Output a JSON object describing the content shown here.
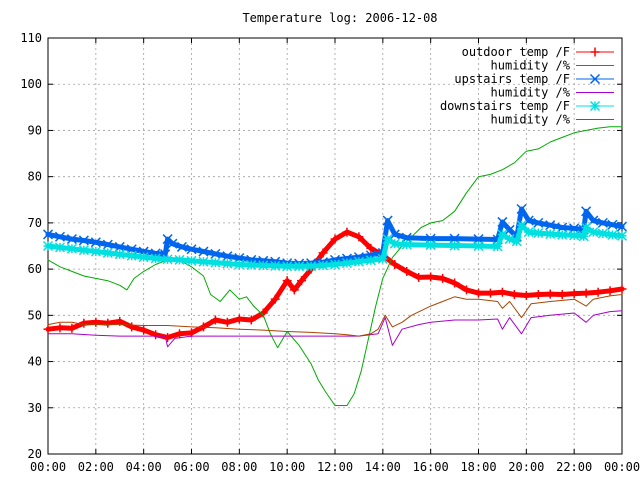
{
  "chart_data": {
    "type": "line",
    "title": "Temperature log: 2006-12-08",
    "xlabel": "",
    "ylabel": "",
    "x_ticks": [
      "00:00",
      "02:00",
      "04:00",
      "06:00",
      "08:00",
      "10:00",
      "12:00",
      "14:00",
      "16:00",
      "18:00",
      "20:00",
      "22:00",
      "00:00"
    ],
    "y_ticks": [
      20,
      30,
      40,
      50,
      60,
      70,
      80,
      90,
      100,
      110
    ],
    "xlim": [
      0,
      24
    ],
    "ylim": [
      20,
      110
    ],
    "grid": true,
    "legend_position": "top-right",
    "series": [
      {
        "name": "outdoor temp /F",
        "color": "#ff0000",
        "marker": "plus",
        "points": [
          [
            0,
            47.0
          ],
          [
            0.5,
            47.3
          ],
          [
            1.0,
            47.2
          ],
          [
            1.5,
            48.3
          ],
          [
            2.0,
            48.5
          ],
          [
            2.5,
            48.3
          ],
          [
            3.0,
            48.7
          ],
          [
            3.5,
            47.5
          ],
          [
            4.0,
            46.8
          ],
          [
            4.5,
            45.8
          ],
          [
            5.0,
            45.2
          ],
          [
            5.5,
            46.0
          ],
          [
            6.0,
            46.2
          ],
          [
            6.5,
            47.5
          ],
          [
            7.0,
            49.0
          ],
          [
            7.5,
            48.5
          ],
          [
            8.0,
            49.2
          ],
          [
            8.5,
            49.0
          ],
          [
            9.0,
            50.5
          ],
          [
            9.5,
            53.5
          ],
          [
            10.0,
            57.5
          ],
          [
            10.3,
            55.5
          ],
          [
            10.6,
            57.5
          ],
          [
            11.0,
            60.0
          ],
          [
            11.5,
            63.5
          ],
          [
            12.0,
            66.5
          ],
          [
            12.5,
            68.0
          ],
          [
            13.0,
            67.0
          ],
          [
            13.5,
            64.5
          ],
          [
            14.0,
            63.0
          ],
          [
            14.5,
            61.0
          ],
          [
            15.0,
            59.5
          ],
          [
            15.5,
            58.2
          ],
          [
            16.0,
            58.3
          ],
          [
            16.5,
            58.0
          ],
          [
            17.0,
            57.0
          ],
          [
            17.5,
            55.5
          ],
          [
            18.0,
            54.8
          ],
          [
            18.5,
            54.8
          ],
          [
            19.0,
            55.0
          ],
          [
            19.5,
            54.5
          ],
          [
            20.0,
            54.3
          ],
          [
            20.5,
            54.5
          ],
          [
            21.0,
            54.6
          ],
          [
            21.5,
            54.5
          ],
          [
            22.0,
            54.7
          ],
          [
            22.5,
            54.8
          ],
          [
            23.0,
            55.0
          ],
          [
            23.5,
            55.3
          ],
          [
            24.0,
            55.7
          ]
        ]
      },
      {
        "name": "humidity /%",
        "color": "#00aa00",
        "marker": "none",
        "points": [
          [
            0,
            62.0
          ],
          [
            0.5,
            60.5
          ],
          [
            1.0,
            59.5
          ],
          [
            1.5,
            58.5
          ],
          [
            2.0,
            58.0
          ],
          [
            2.5,
            57.5
          ],
          [
            3.0,
            56.5
          ],
          [
            3.3,
            55.5
          ],
          [
            3.6,
            58.0
          ],
          [
            4.0,
            59.5
          ],
          [
            4.5,
            61.0
          ],
          [
            5.0,
            62.0
          ],
          [
            5.5,
            62.0
          ],
          [
            6.0,
            60.5
          ],
          [
            6.5,
            58.5
          ],
          [
            6.8,
            54.5
          ],
          [
            7.2,
            53.0
          ],
          [
            7.6,
            55.5
          ],
          [
            8.0,
            53.5
          ],
          [
            8.3,
            54.0
          ],
          [
            8.6,
            52.0
          ],
          [
            9.0,
            50.0
          ],
          [
            9.3,
            46.0
          ],
          [
            9.6,
            43.0
          ],
          [
            10.0,
            46.5
          ],
          [
            10.5,
            43.5
          ],
          [
            11.0,
            39.5
          ],
          [
            11.3,
            36.0
          ],
          [
            11.6,
            33.5
          ],
          [
            12.0,
            30.5
          ],
          [
            12.5,
            30.5
          ],
          [
            12.8,
            33.0
          ],
          [
            13.1,
            38.0
          ],
          [
            13.4,
            45.0
          ],
          [
            13.7,
            52.0
          ],
          [
            14.0,
            58.0
          ],
          [
            14.4,
            62.5
          ],
          [
            14.8,
            65.0
          ],
          [
            15.2,
            67.0
          ],
          [
            15.6,
            69.0
          ],
          [
            16.0,
            70.0
          ],
          [
            16.5,
            70.5
          ],
          [
            17.0,
            72.5
          ],
          [
            17.5,
            76.5
          ],
          [
            18.0,
            80.0
          ],
          [
            18.5,
            80.5
          ],
          [
            19.0,
            81.5
          ],
          [
            19.5,
            83.0
          ],
          [
            20.0,
            85.5
          ],
          [
            20.5,
            86.0
          ],
          [
            21.0,
            87.5
          ],
          [
            21.5,
            88.5
          ],
          [
            22.0,
            89.5
          ],
          [
            22.5,
            90.0
          ],
          [
            23.0,
            90.5
          ],
          [
            23.5,
            90.8
          ],
          [
            24.0,
            90.8
          ]
        ]
      },
      {
        "name": "upstairs temp /F",
        "color": "#0066ee",
        "marker": "x",
        "points": [
          [
            0,
            67.5
          ],
          [
            0.5,
            67.0
          ],
          [
            1.0,
            66.5
          ],
          [
            1.5,
            66.2
          ],
          [
            2.0,
            65.8
          ],
          [
            2.5,
            65.3
          ],
          [
            3.0,
            64.8
          ],
          [
            3.5,
            64.3
          ],
          [
            4.0,
            63.8
          ],
          [
            4.5,
            63.4
          ],
          [
            4.9,
            63.2
          ],
          [
            5.0,
            66.5
          ],
          [
            5.2,
            65.5
          ],
          [
            5.6,
            64.8
          ],
          [
            6.0,
            64.3
          ],
          [
            6.5,
            63.8
          ],
          [
            7.0,
            63.3
          ],
          [
            7.5,
            62.8
          ],
          [
            8.0,
            62.4
          ],
          [
            8.5,
            62.0
          ],
          [
            9.0,
            61.8
          ],
          [
            9.5,
            61.6
          ],
          [
            10.0,
            61.3
          ],
          [
            10.5,
            61.2
          ],
          [
            11.0,
            61.3
          ],
          [
            11.5,
            61.5
          ],
          [
            12.0,
            62.0
          ],
          [
            12.5,
            62.3
          ],
          [
            13.0,
            62.6
          ],
          [
            13.5,
            63.0
          ],
          [
            14.0,
            63.5
          ],
          [
            14.2,
            70.5
          ],
          [
            14.5,
            67.5
          ],
          [
            15.0,
            66.8
          ],
          [
            16.0,
            66.6
          ],
          [
            17.0,
            66.6
          ],
          [
            18.0,
            66.5
          ],
          [
            18.8,
            66.4
          ],
          [
            19.0,
            70.2
          ],
          [
            19.3,
            68.5
          ],
          [
            19.6,
            67.0
          ],
          [
            19.8,
            73.0
          ],
          [
            20.1,
            70.5
          ],
          [
            20.5,
            70.0
          ],
          [
            21.0,
            69.5
          ],
          [
            21.5,
            69.0
          ],
          [
            22.0,
            68.8
          ],
          [
            22.4,
            68.5
          ],
          [
            22.5,
            72.5
          ],
          [
            22.8,
            70.5
          ],
          [
            23.2,
            70.0
          ],
          [
            23.6,
            69.6
          ],
          [
            24.0,
            69.2
          ]
        ]
      },
      {
        "name": "humidity /%",
        "color": "#aa00cc",
        "marker": "none",
        "points": [
          [
            0,
            46.0
          ],
          [
            1.0,
            46.0
          ],
          [
            2.0,
            45.7
          ],
          [
            3.0,
            45.5
          ],
          [
            4.0,
            45.5
          ],
          [
            4.9,
            45.5
          ],
          [
            5.0,
            43.2
          ],
          [
            5.3,
            45.0
          ],
          [
            6.0,
            45.5
          ],
          [
            7.0,
            45.5
          ],
          [
            8.0,
            45.5
          ],
          [
            9.0,
            45.5
          ],
          [
            10.0,
            45.5
          ],
          [
            11.0,
            45.5
          ],
          [
            12.0,
            45.5
          ],
          [
            13.0,
            45.5
          ],
          [
            13.8,
            46.0
          ],
          [
            14.1,
            49.5
          ],
          [
            14.4,
            43.5
          ],
          [
            14.8,
            47.0
          ],
          [
            15.5,
            48.0
          ],
          [
            16.0,
            48.5
          ],
          [
            17.0,
            49.0
          ],
          [
            18.0,
            49.0
          ],
          [
            18.8,
            49.2
          ],
          [
            19.0,
            47.0
          ],
          [
            19.3,
            49.5
          ],
          [
            19.8,
            46.0
          ],
          [
            20.2,
            49.5
          ],
          [
            21.0,
            50.0
          ],
          [
            22.0,
            50.5
          ],
          [
            22.5,
            48.5
          ],
          [
            22.8,
            50.0
          ],
          [
            23.5,
            50.8
          ],
          [
            24.0,
            51.0
          ]
        ]
      },
      {
        "name": "downstairs temp /F",
        "color": "#00e0e0",
        "marker": "star",
        "points": [
          [
            0,
            65.0
          ],
          [
            0.5,
            64.7
          ],
          [
            1.0,
            64.4
          ],
          [
            1.5,
            64.1
          ],
          [
            2.0,
            63.8
          ],
          [
            2.5,
            63.5
          ],
          [
            3.0,
            63.2
          ],
          [
            3.5,
            62.9
          ],
          [
            4.0,
            62.6
          ],
          [
            4.5,
            62.3
          ],
          [
            5.0,
            62.1
          ],
          [
            5.5,
            62.0
          ],
          [
            6.0,
            61.8
          ],
          [
            6.5,
            61.6
          ],
          [
            7.0,
            61.4
          ],
          [
            7.5,
            61.2
          ],
          [
            8.0,
            61.0
          ],
          [
            8.5,
            60.9
          ],
          [
            9.0,
            60.8
          ],
          [
            9.5,
            60.7
          ],
          [
            10.0,
            60.6
          ],
          [
            10.5,
            60.6
          ],
          [
            11.0,
            60.6
          ],
          [
            11.5,
            60.8
          ],
          [
            12.0,
            61.0
          ],
          [
            12.5,
            61.3
          ],
          [
            13.0,
            61.6
          ],
          [
            13.5,
            61.9
          ],
          [
            14.0,
            62.2
          ],
          [
            14.2,
            66.5
          ],
          [
            14.5,
            65.5
          ],
          [
            15.0,
            65.3
          ],
          [
            16.0,
            65.2
          ],
          [
            17.0,
            65.1
          ],
          [
            18.0,
            65.0
          ],
          [
            18.8,
            64.9
          ],
          [
            19.0,
            67.5
          ],
          [
            19.3,
            66.5
          ],
          [
            19.6,
            66.0
          ],
          [
            19.8,
            69.5
          ],
          [
            20.1,
            68.0
          ],
          [
            20.5,
            67.8
          ],
          [
            21.0,
            67.6
          ],
          [
            21.5,
            67.4
          ],
          [
            22.0,
            67.3
          ],
          [
            22.4,
            67.1
          ],
          [
            22.5,
            69.0
          ],
          [
            22.8,
            68.0
          ],
          [
            23.2,
            67.7
          ],
          [
            23.6,
            67.4
          ],
          [
            24.0,
            67.2
          ]
        ]
      },
      {
        "name": "humidity /%",
        "color": "#aa4400",
        "marker": "none",
        "points": [
          [
            0,
            48.0
          ],
          [
            0.5,
            48.5
          ],
          [
            1.0,
            48.5
          ],
          [
            1.5,
            48.0
          ],
          [
            2.0,
            48.0
          ],
          [
            3.0,
            48.0
          ],
          [
            4.0,
            47.8
          ],
          [
            5.0,
            47.8
          ],
          [
            6.0,
            47.5
          ],
          [
            7.0,
            47.3
          ],
          [
            8.0,
            47.0
          ],
          [
            9.0,
            46.8
          ],
          [
            10.0,
            46.5
          ],
          [
            11.0,
            46.3
          ],
          [
            12.0,
            46.0
          ],
          [
            12.5,
            45.8
          ],
          [
            13.0,
            45.5
          ],
          [
            13.5,
            46.0
          ],
          [
            13.8,
            47.0
          ],
          [
            14.1,
            50.0
          ],
          [
            14.4,
            47.5
          ],
          [
            14.8,
            48.5
          ],
          [
            15.2,
            50.0
          ],
          [
            15.6,
            51.0
          ],
          [
            16.0,
            52.0
          ],
          [
            16.5,
            53.0
          ],
          [
            17.0,
            54.0
          ],
          [
            17.5,
            53.5
          ],
          [
            18.0,
            53.5
          ],
          [
            18.8,
            53.0
          ],
          [
            19.0,
            51.5
          ],
          [
            19.3,
            53.0
          ],
          [
            19.8,
            49.5
          ],
          [
            20.2,
            52.5
          ],
          [
            21.0,
            53.0
          ],
          [
            22.0,
            53.5
          ],
          [
            22.5,
            52.0
          ],
          [
            22.8,
            53.5
          ],
          [
            23.5,
            54.2
          ],
          [
            24.0,
            54.5
          ]
        ]
      }
    ]
  }
}
